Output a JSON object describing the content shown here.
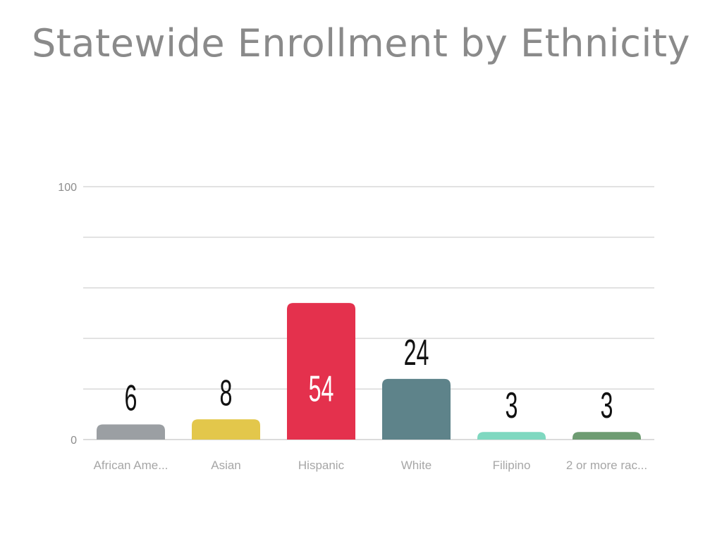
{
  "chart_data": {
    "type": "bar",
    "title": "Statewide Enrollment by Ethnicity",
    "categories": [
      "African Ame...",
      "Asian",
      "Hispanic",
      "White",
      "Filipino",
      "2 or more rac..."
    ],
    "values": [
      6,
      8,
      54,
      24,
      3,
      3
    ],
    "colors": [
      "#9b9fa3",
      "#e3c74b",
      "#e4314d",
      "#5e838a",
      "#7fd8c0",
      "#6e9c72"
    ],
    "data_label_colors": [
      "#111111",
      "#111111",
      "#ffffff",
      "#111111",
      "#111111",
      "#111111"
    ],
    "ylim": [
      0,
      100
    ],
    "y_tick_labels": [
      "0",
      "100"
    ],
    "gridlines": [
      20,
      40,
      60,
      80,
      100
    ],
    "xlabel": "",
    "ylabel": "",
    "legend": "none"
  }
}
